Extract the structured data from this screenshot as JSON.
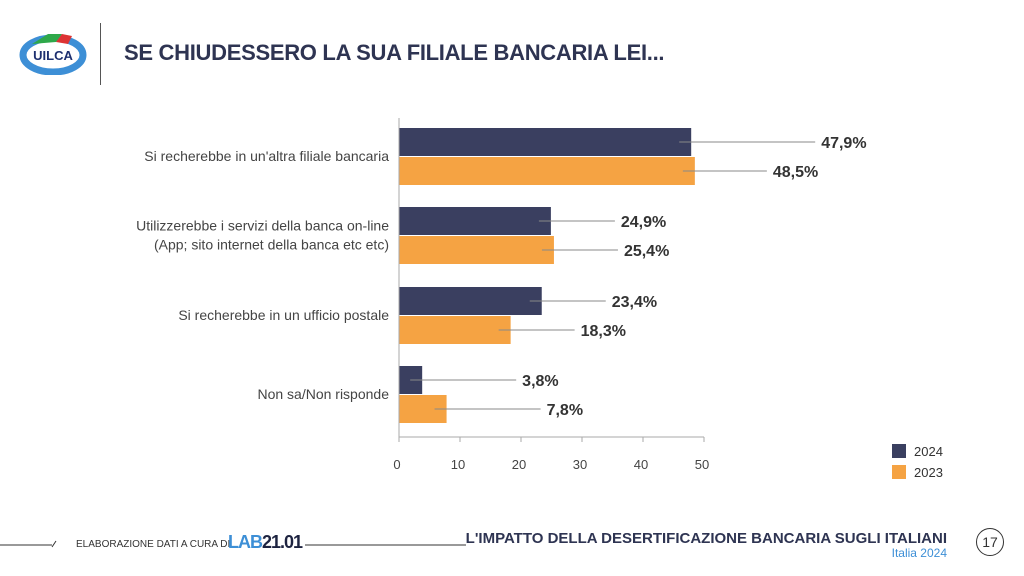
{
  "header": {
    "title": "SE CHIUDESSERO LA SUA FILIALE BANCARIA LEI...",
    "logo_text": "UILCA"
  },
  "chart_data": {
    "type": "bar",
    "orientation": "horizontal",
    "categories": [
      "Si recherebbe in un'altra filiale bancaria",
      "Utilizzerebbe i servizi della banca on-line\n(App; sito internet della banca etc etc)",
      "Si recherebbe in un ufficio postale",
      "Non sa/Non risponde"
    ],
    "category_lines": [
      [
        "Si recherebbe in un'altra filiale bancaria"
      ],
      [
        "Utilizzerebbe i servizi della banca on-line",
        "(App; sito internet della banca etc etc)"
      ],
      [
        "Si recherebbe in un ufficio postale"
      ],
      [
        "Non sa/Non risponde"
      ]
    ],
    "series": [
      {
        "name": "2024",
        "color": "#3a3f60",
        "values": [
          47.9,
          24.9,
          23.4,
          3.8
        ],
        "labels": [
          "47,9%",
          "24,9%",
          "23,4%",
          "3,8%"
        ]
      },
      {
        "name": "2023",
        "color": "#f5a343",
        "values": [
          48.5,
          25.4,
          18.3,
          7.8
        ],
        "labels": [
          "48,5%",
          "25,4%",
          "18,3%",
          "7,8%"
        ]
      }
    ],
    "xlim": [
      0,
      50
    ],
    "ticks": [
      "0",
      "10",
      "20",
      "30",
      "40",
      "50"
    ],
    "legend": "bottom-right",
    "grid": false
  },
  "footer": {
    "credit": "ELABORAZIONE DATI A CURA DI",
    "lab_a": "LAB",
    "lab_b": "21.01",
    "title": "L'IMPATTO DELLA DESERTIFICAZIONE BANCARIA SUGLI ITALIANI",
    "subtitle": "Italia 2024",
    "page": "17"
  }
}
